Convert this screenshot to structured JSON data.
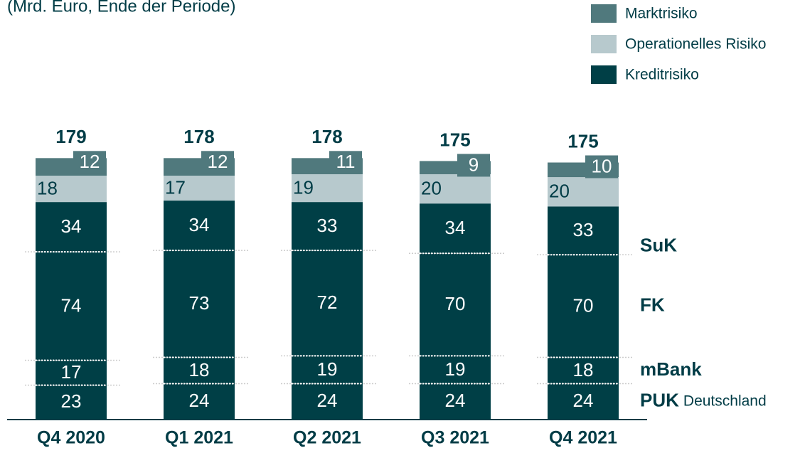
{
  "chart_data": {
    "type": "stacked_bar",
    "subtitle": "(Mrd. Euro, Ende der Periode)",
    "categories": [
      "Q4 2020",
      "Q1 2021",
      "Q2 2021",
      "Q3 2021",
      "Q4 2021"
    ],
    "totals": [
      179,
      178,
      178,
      175,
      175
    ],
    "series": [
      {
        "name": "PUK",
        "note": "Deutschland",
        "color": "#003f46",
        "values": [
          23,
          24,
          24,
          24,
          24
        ]
      },
      {
        "name": "mBank",
        "color": "#003f46",
        "values": [
          17,
          18,
          19,
          19,
          18
        ]
      },
      {
        "name": "FK",
        "color": "#003f46",
        "values": [
          74,
          73,
          72,
          70,
          70
        ]
      },
      {
        "name": "SuK",
        "color": "#003f46",
        "values": [
          34,
          34,
          33,
          34,
          33
        ]
      },
      {
        "name": "Operationelles Risiko",
        "color": "#b7c9cd",
        "values": [
          18,
          17,
          19,
          20,
          20
        ]
      },
      {
        "name": "Marktrisiko",
        "color": "#50797d",
        "values": [
          12,
          12,
          11,
          9,
          10
        ]
      }
    ],
    "credit_legend": {
      "name": "Kreditrisiko",
      "color": "#003f46"
    }
  }
}
